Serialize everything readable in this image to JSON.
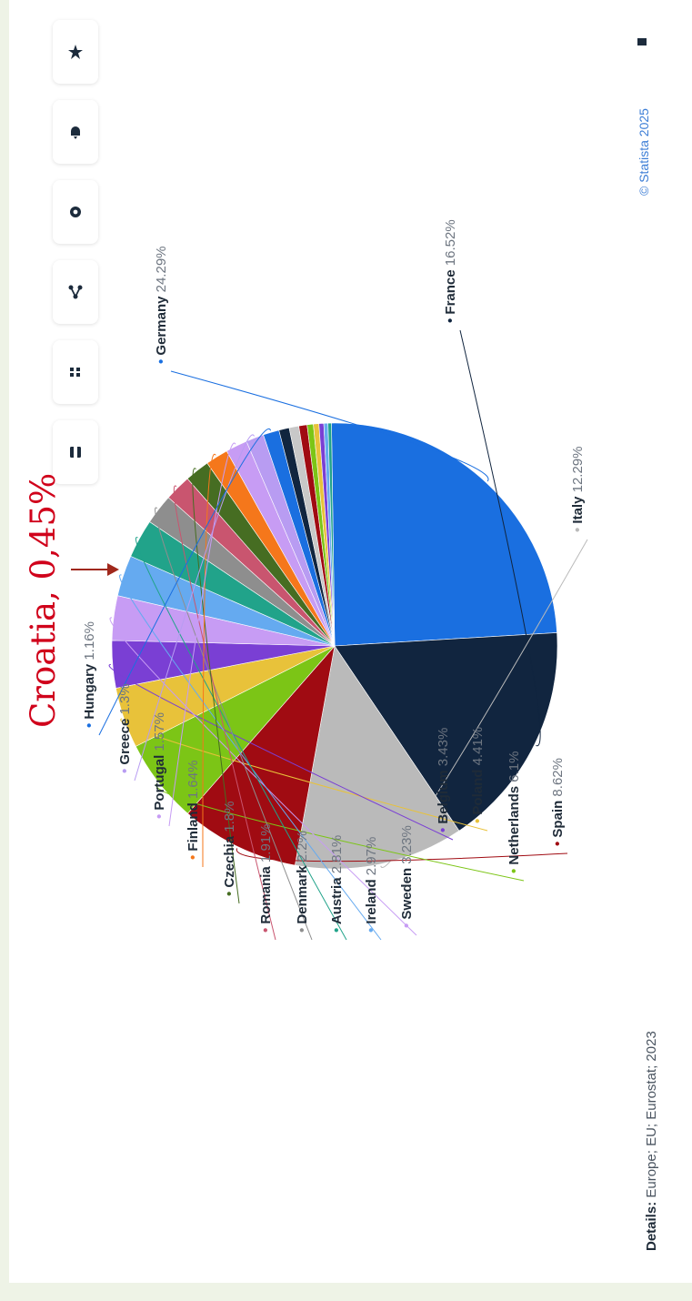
{
  "toolbar": {
    "icons": [
      "star-icon",
      "bell-icon",
      "gear-icon",
      "share-icon",
      "quote-icon",
      "print-icon"
    ]
  },
  "credit": "© Statista 2025",
  "details": {
    "label": "Details:",
    "text": "Europe; EU; Eurostat; 2023"
  },
  "annotation": {
    "text": "Croatia, 0,45%",
    "color": "#d0021b"
  },
  "chart_data": {
    "type": "pie",
    "unit": "%",
    "slices": [
      {
        "label": "Germany",
        "value": 24.29,
        "display": "24.29%",
        "color": "#1a6fe0"
      },
      {
        "label": "France",
        "value": 16.52,
        "display": "16.52%",
        "color": "#11253f"
      },
      {
        "label": "Italy",
        "value": 12.29,
        "display": "12.29%",
        "color": "#bababa"
      },
      {
        "label": "Spain",
        "value": 8.62,
        "display": "8.62%",
        "color": "#a00b12"
      },
      {
        "label": "Netherlands",
        "value": 6.1,
        "display": "6.1%",
        "color": "#7cc516"
      },
      {
        "label": "Poland",
        "value": 4.41,
        "display": "4.41%",
        "color": "#e8c23a"
      },
      {
        "label": "Belgium",
        "value": 3.43,
        "display": "3.43%",
        "color": "#7a3fd4"
      },
      {
        "label": "Sweden",
        "value": 3.23,
        "display": "3.23%",
        "color": "#c79cf4"
      },
      {
        "label": "Ireland",
        "value": 2.97,
        "display": "2.97%",
        "color": "#65aaf0"
      },
      {
        "label": "Austria",
        "value": 2.81,
        "display": "2.81%",
        "color": "#21a38a"
      },
      {
        "label": "Denmark",
        "value": 2.2,
        "display": "2.2%",
        "color": "#8e8e8e"
      },
      {
        "label": "Romania",
        "value": 1.91,
        "display": "1.91%",
        "color": "#c9556f"
      },
      {
        "label": "Czechia",
        "value": 1.8,
        "display": "1.8%",
        "color": "#466d22"
      },
      {
        "label": "Finland",
        "value": 1.64,
        "display": "1.64%",
        "color": "#f5771b"
      },
      {
        "label": "Portugal",
        "value": 1.57,
        "display": "1.57%",
        "color": "#c79cf4"
      },
      {
        "label": "Greece",
        "value": 1.3,
        "display": "1.3%",
        "color": "#b89cf2"
      },
      {
        "label": "Hungary",
        "value": 1.16,
        "display": "1.16%",
        "color": "#1a6fe0"
      },
      {
        "label": "",
        "value": 0.75,
        "display": "",
        "color": "#11253f"
      },
      {
        "label": "",
        "value": 0.7,
        "display": "",
        "color": "#c8c8c8"
      },
      {
        "label": "",
        "value": 0.6,
        "display": "",
        "color": "#a00b12"
      },
      {
        "label": "Croatia",
        "value": 0.45,
        "display": "",
        "color": "#7cc516"
      },
      {
        "label": "",
        "value": 0.4,
        "display": "",
        "color": "#e8c23a"
      },
      {
        "label": "",
        "value": 0.35,
        "display": "",
        "color": "#7a3fd4"
      },
      {
        "label": "",
        "value": 0.3,
        "display": "",
        "color": "#65aaf0"
      },
      {
        "label": "",
        "value": 0.25,
        "display": "",
        "color": "#21a38a"
      }
    ]
  }
}
